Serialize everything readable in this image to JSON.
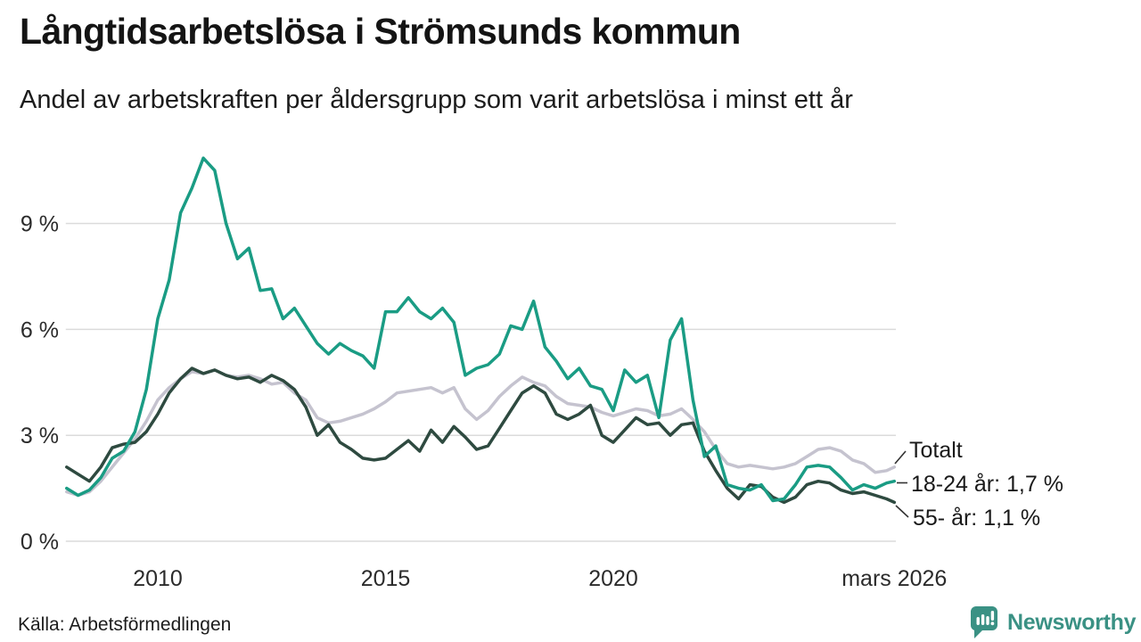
{
  "header": {
    "title": "Långtidsarbetslösa i Strömsunds kommun",
    "subtitle": "Andel av arbetskraften per åldersgrupp som varit arbetslösa i minst ett år"
  },
  "footer": {
    "source": "Källa: Arbetsförmedlingen",
    "brand": "Newsworthy"
  },
  "colors": {
    "teal": "#1A9C84",
    "dark_green": "#2E4A40",
    "light_grey": "#C5C3CF",
    "grid": "#DBDBDB",
    "leader": "#333333",
    "brand_teal": "#3A9184"
  },
  "chart_data": {
    "type": "line",
    "title": "Långtidsarbetslösa i Strömsunds kommun",
    "subtitle": "Andel av arbetskraften per åldersgrupp som varit arbetslösa i minst ett år",
    "x_unit": "year (decimal, monthly series sampled quarterly; last point = mars 2026)",
    "grid": true,
    "legend_position": "right-end-labels",
    "ylim": [
      0,
      11.3
    ],
    "yticks": [
      {
        "v": 0,
        "label": "0 %"
      },
      {
        "v": 3,
        "label": "3 %"
      },
      {
        "v": 6,
        "label": "6 %"
      },
      {
        "v": 9,
        "label": "9 %"
      }
    ],
    "xticks": [
      {
        "v": 2010,
        "label": "2010"
      },
      {
        "v": 2015,
        "label": "2015"
      },
      {
        "v": 2020,
        "label": "2020"
      },
      {
        "v": 2026.17,
        "label": "mars 2026"
      }
    ],
    "x": [
      2008,
      2008.25,
      2008.5,
      2008.75,
      2009,
      2009.25,
      2009.5,
      2009.75,
      2010,
      2010.25,
      2010.5,
      2010.75,
      2011,
      2011.25,
      2011.5,
      2011.75,
      2012,
      2012.25,
      2012.5,
      2012.75,
      2013,
      2013.25,
      2013.5,
      2013.75,
      2014,
      2014.25,
      2014.5,
      2014.75,
      2015,
      2015.25,
      2015.5,
      2015.75,
      2016,
      2016.25,
      2016.5,
      2016.75,
      2017,
      2017.25,
      2017.5,
      2017.75,
      2018,
      2018.25,
      2018.5,
      2018.75,
      2019,
      2019.25,
      2019.5,
      2019.75,
      2020,
      2020.25,
      2020.5,
      2020.75,
      2021,
      2021.25,
      2021.5,
      2021.75,
      2022,
      2022.25,
      2022.5,
      2022.75,
      2023,
      2023.25,
      2023.5,
      2023.75,
      2024,
      2024.25,
      2024.5,
      2024.75,
      2025,
      2025.25,
      2025.5,
      2025.75,
      2026,
      2026.17
    ],
    "series": [
      {
        "name": "Totalt",
        "end_label": "Totalt",
        "color": "#C5C3CF",
        "values": [
          1.4,
          1.3,
          1.4,
          1.7,
          2.1,
          2.5,
          2.9,
          3.4,
          4.0,
          4.35,
          4.6,
          4.8,
          4.75,
          4.85,
          4.7,
          4.65,
          4.7,
          4.6,
          4.45,
          4.5,
          4.2,
          4.0,
          3.5,
          3.35,
          3.4,
          3.5,
          3.6,
          3.75,
          3.95,
          4.2,
          4.25,
          4.3,
          4.35,
          4.2,
          4.35,
          3.75,
          3.45,
          3.7,
          4.1,
          4.4,
          4.65,
          4.5,
          4.4,
          4.1,
          3.9,
          3.85,
          3.8,
          3.65,
          3.55,
          3.65,
          3.75,
          3.7,
          3.55,
          3.6,
          3.75,
          3.45,
          3.1,
          2.6,
          2.2,
          2.1,
          2.15,
          2.1,
          2.05,
          2.1,
          2.2,
          2.4,
          2.6,
          2.65,
          2.55,
          2.3,
          2.2,
          1.95,
          2.0,
          2.1
        ]
      },
      {
        "name": "18-24 år",
        "end_label": "18-24 år: 1,7 %",
        "end_value": 1.7,
        "color": "#1A9C84",
        "values": [
          1.5,
          1.3,
          1.45,
          1.8,
          2.35,
          2.55,
          3.1,
          4.3,
          6.3,
          7.4,
          9.3,
          10.0,
          10.85,
          10.5,
          9.0,
          8.0,
          8.3,
          7.1,
          7.15,
          6.3,
          6.6,
          6.1,
          5.6,
          5.3,
          5.6,
          5.4,
          5.25,
          4.9,
          6.5,
          6.5,
          6.9,
          6.5,
          6.3,
          6.6,
          6.2,
          4.7,
          4.9,
          5.0,
          5.3,
          6.1,
          6.0,
          6.8,
          5.5,
          5.1,
          4.6,
          4.9,
          4.4,
          4.3,
          3.7,
          4.85,
          4.5,
          4.7,
          3.5,
          5.7,
          6.3,
          4.0,
          2.4,
          2.7,
          1.6,
          1.5,
          1.45,
          1.6,
          1.15,
          1.2,
          1.6,
          2.1,
          2.15,
          2.1,
          1.8,
          1.45,
          1.6,
          1.5,
          1.65,
          1.7
        ]
      },
      {
        "name": "55- år",
        "end_label": "55- år: 1,1 %",
        "end_value": 1.1,
        "color": "#2E4A40",
        "values": [
          2.1,
          1.9,
          1.7,
          2.1,
          2.65,
          2.75,
          2.8,
          3.1,
          3.6,
          4.2,
          4.6,
          4.9,
          4.75,
          4.85,
          4.7,
          4.6,
          4.65,
          4.5,
          4.7,
          4.55,
          4.3,
          3.8,
          3.0,
          3.3,
          2.8,
          2.6,
          2.35,
          2.3,
          2.35,
          2.6,
          2.85,
          2.55,
          3.15,
          2.8,
          3.25,
          2.95,
          2.6,
          2.7,
          3.2,
          3.7,
          4.2,
          4.4,
          4.2,
          3.6,
          3.45,
          3.6,
          3.85,
          3.0,
          2.8,
          3.15,
          3.5,
          3.3,
          3.35,
          3.0,
          3.3,
          3.35,
          2.55,
          2.0,
          1.5,
          1.2,
          1.6,
          1.55,
          1.25,
          1.1,
          1.25,
          1.6,
          1.7,
          1.65,
          1.45,
          1.35,
          1.4,
          1.3,
          1.2,
          1.1
        ]
      }
    ]
  }
}
